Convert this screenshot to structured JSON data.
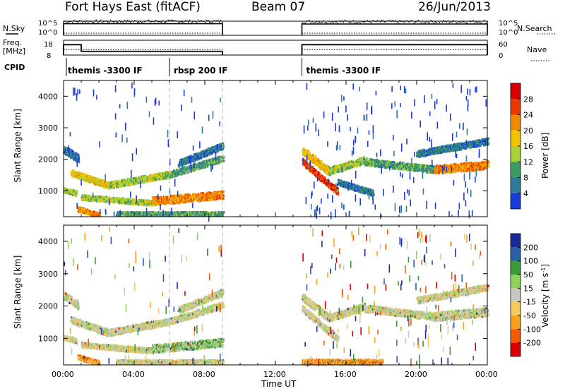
{
  "header": {
    "station": "Fort Hays East (fitACF)",
    "beam": "Beam 07",
    "date": "26/Jun/2013"
  },
  "side_labels": {
    "nsky": "N.Sky",
    "freq": "Freq.",
    "freq_unit": "[MHz]",
    "cpid": "CPID",
    "nsearch": "N.Search",
    "nave": "Nave"
  },
  "scale_labels": {
    "sky_top": "10^5",
    "sky_bot": "10^0",
    "search_top": "10^5",
    "search_bot": "10^0",
    "freq_top": "18",
    "freq_bot": "8",
    "nave_top": "60",
    "nave_bot": "0"
  },
  "cpid_segments": [
    {
      "label": "themis -3300 IF",
      "start": 0.0
    },
    {
      "label": "rbsp 200 IF",
      "start": 6.0
    },
    {
      "label": "themis -3300 IF",
      "start": 13.5
    }
  ],
  "colors": {
    "power_scale": [
      "#1a3cd6",
      "#2f7a9a",
      "#3d9b62",
      "#a9d23a",
      "#f2c400",
      "#f28a00",
      "#e83a00",
      "#d60000"
    ],
    "velocity_scale": [
      "#d80000",
      "#f05a00",
      "#f7a21c",
      "#f5c860",
      "#c8c8c0",
      "#8fd45a",
      "#3a9a3a",
      "#2a5fa8",
      "#1a2a9a"
    ]
  },
  "chart_data": [
    {
      "type": "line",
      "title": "",
      "series": [
        {
          "name": "N.Sky",
          "segments": [
            {
              "start": 0.0,
              "end": 9.0,
              "level": 0.82
            },
            {
              "start": 13.5,
              "end": 24.0,
              "level": 0.8
            }
          ]
        },
        {
          "name": "N.Search",
          "segments": [
            {
              "start": 0.0,
              "end": 9.0,
              "level": 0.15
            },
            {
              "start": 13.5,
              "end": 24.0,
              "level": 0.15
            }
          ]
        }
      ],
      "xlim": [
        0,
        24
      ],
      "ylabel": "N.Sky"
    },
    {
      "type": "line",
      "series": [
        {
          "name": "Freq.",
          "segments": [
            {
              "start": 0.0,
              "end": 1.0,
              "value": 15
            },
            {
              "start": 1.0,
              "end": 9.0,
              "value": 10.5
            },
            {
              "start": 13.5,
              "end": 24.0,
              "value": 15
            }
          ]
        },
        {
          "name": "Nave",
          "segments": [
            {
              "start": 0.0,
              "end": 9.0,
              "value": 22
            },
            {
              "start": 13.5,
              "end": 24.0,
              "value": 22
            }
          ]
        }
      ],
      "ylim_freq": [
        8,
        18
      ],
      "ylim_nave": [
        0,
        60
      ],
      "xlim": [
        0,
        24
      ]
    },
    {
      "type": "heatmap",
      "quantity": "Power",
      "ylabel": "Slant Range [km]",
      "colorbar_label": "Power [dB]",
      "colorbar_ticks": [
        "4",
        "8",
        "12",
        "16",
        "20",
        "24",
        "28"
      ],
      "yticks": [
        1000,
        2000,
        3000,
        4000
      ],
      "ylim": [
        180,
        4500
      ],
      "xlim": [
        0,
        24
      ],
      "gap": [
        9.0,
        13.5
      ],
      "bands": [
        {
          "t0": 0.0,
          "t1": 0.8,
          "r0": 2350,
          "r1": 2050,
          "thick": 250,
          "level": 1
        },
        {
          "t0": 0.0,
          "t1": 0.7,
          "r0": 1050,
          "r1": 950,
          "thick": 150,
          "level": 3
        },
        {
          "t0": 0.4,
          "t1": 2.5,
          "r0": 1600,
          "r1": 1200,
          "thick": 200,
          "level": 4
        },
        {
          "t0": 2.5,
          "t1": 6.0,
          "r0": 1200,
          "r1": 1550,
          "thick": 200,
          "level": 3
        },
        {
          "t0": 6.0,
          "t1": 9.0,
          "r0": 1550,
          "r1": 2050,
          "thick": 200,
          "level": 2
        },
        {
          "t0": 1.0,
          "t1": 5.0,
          "r0": 820,
          "r1": 640,
          "thick": 160,
          "level": 3
        },
        {
          "t0": 5.0,
          "t1": 9.0,
          "r0": 700,
          "r1": 900,
          "thick": 250,
          "level": 5
        },
        {
          "t0": 6.5,
          "t1": 9.0,
          "r0": 1900,
          "r1": 2450,
          "thick": 200,
          "level": 1
        },
        {
          "t0": 0.8,
          "t1": 2.0,
          "r0": 450,
          "r1": 250,
          "thick": 150,
          "level": 5
        },
        {
          "t0": 3.0,
          "t1": 9.0,
          "r0": 300,
          "r1": 300,
          "thick": 120,
          "level": 2
        },
        {
          "t0": 13.5,
          "t1": 15.0,
          "r0": 2300,
          "r1": 1650,
          "thick": 250,
          "level": 4
        },
        {
          "t0": 13.5,
          "t1": 15.5,
          "r0": 1950,
          "r1": 1000,
          "thick": 200,
          "level": 6
        },
        {
          "t0": 15.0,
          "t1": 17.0,
          "r0": 1650,
          "r1": 2000,
          "thick": 220,
          "level": 3
        },
        {
          "t0": 17.0,
          "t1": 21.0,
          "r0": 1950,
          "r1": 1700,
          "thick": 220,
          "level": 2
        },
        {
          "t0": 21.0,
          "t1": 24.0,
          "r0": 1700,
          "r1": 1850,
          "thick": 260,
          "level": 5
        },
        {
          "t0": 20.0,
          "t1": 24.0,
          "r0": 2200,
          "r1": 2600,
          "thick": 200,
          "level": 1
        },
        {
          "t0": 15.5,
          "t1": 17.5,
          "r0": 1300,
          "r1": 950,
          "thick": 180,
          "level": 1
        }
      ]
    },
    {
      "type": "heatmap",
      "quantity": "Velocity",
      "ylabel": "Slant Range [km]",
      "colorbar_label": "Velocity [m s-1]",
      "colorbar_ticks": [
        "-200",
        "-100",
        "-50",
        "-15",
        "15",
        "50",
        "100",
        "200"
      ],
      "yticks": [
        1000,
        2000,
        3000,
        4000
      ],
      "ylim": [
        180,
        4500
      ],
      "xlim": [
        0,
        24
      ],
      "gap": [
        9.0,
        13.5
      ],
      "bands": [
        {
          "t0": 0.0,
          "t1": 0.8,
          "r0": 2350,
          "r1": 2050,
          "thick": 250,
          "level": 4
        },
        {
          "t0": 0.0,
          "t1": 0.7,
          "r0": 1050,
          "r1": 950,
          "thick": 150,
          "level": 4
        },
        {
          "t0": 0.4,
          "t1": 2.5,
          "r0": 1600,
          "r1": 1200,
          "thick": 200,
          "level": 4
        },
        {
          "t0": 2.5,
          "t1": 6.0,
          "r0": 1200,
          "r1": 1550,
          "thick": 200,
          "level": 4
        },
        {
          "t0": 6.0,
          "t1": 9.0,
          "r0": 1550,
          "r1": 2050,
          "thick": 200,
          "level": 4
        },
        {
          "t0": 1.0,
          "t1": 5.0,
          "r0": 820,
          "r1": 640,
          "thick": 160,
          "level": 4
        },
        {
          "t0": 5.0,
          "t1": 9.0,
          "r0": 700,
          "r1": 900,
          "thick": 250,
          "level": 5
        },
        {
          "t0": 6.5,
          "t1": 9.0,
          "r0": 1900,
          "r1": 2450,
          "thick": 200,
          "level": 4
        },
        {
          "t0": 0.8,
          "t1": 2.0,
          "r0": 450,
          "r1": 250,
          "thick": 150,
          "level": 2
        },
        {
          "t0": 3.0,
          "t1": 9.0,
          "r0": 300,
          "r1": 300,
          "thick": 120,
          "level": 4
        },
        {
          "t0": 13.5,
          "t1": 15.0,
          "r0": 2300,
          "r1": 1650,
          "thick": 250,
          "level": 4
        },
        {
          "t0": 13.5,
          "t1": 15.5,
          "r0": 1950,
          "r1": 1000,
          "thick": 200,
          "level": 4
        },
        {
          "t0": 15.0,
          "t1": 17.0,
          "r0": 1650,
          "r1": 2000,
          "thick": 220,
          "level": 4
        },
        {
          "t0": 17.0,
          "t1": 21.0,
          "r0": 1950,
          "r1": 1700,
          "thick": 220,
          "level": 4
        },
        {
          "t0": 21.0,
          "t1": 24.0,
          "r0": 1700,
          "r1": 1850,
          "thick": 260,
          "level": 4
        },
        {
          "t0": 20.0,
          "t1": 24.0,
          "r0": 2200,
          "r1": 2600,
          "thick": 200,
          "level": 4
        },
        {
          "t0": 13.5,
          "t1": 18.0,
          "r0": 300,
          "r1": 300,
          "thick": 150,
          "level": 2
        }
      ]
    }
  ],
  "xaxis": {
    "ticks": [
      "00:00",
      "04:00",
      "08:00",
      "12:00",
      "16:00",
      "20:00",
      "00:00"
    ],
    "label": "Time UT"
  }
}
